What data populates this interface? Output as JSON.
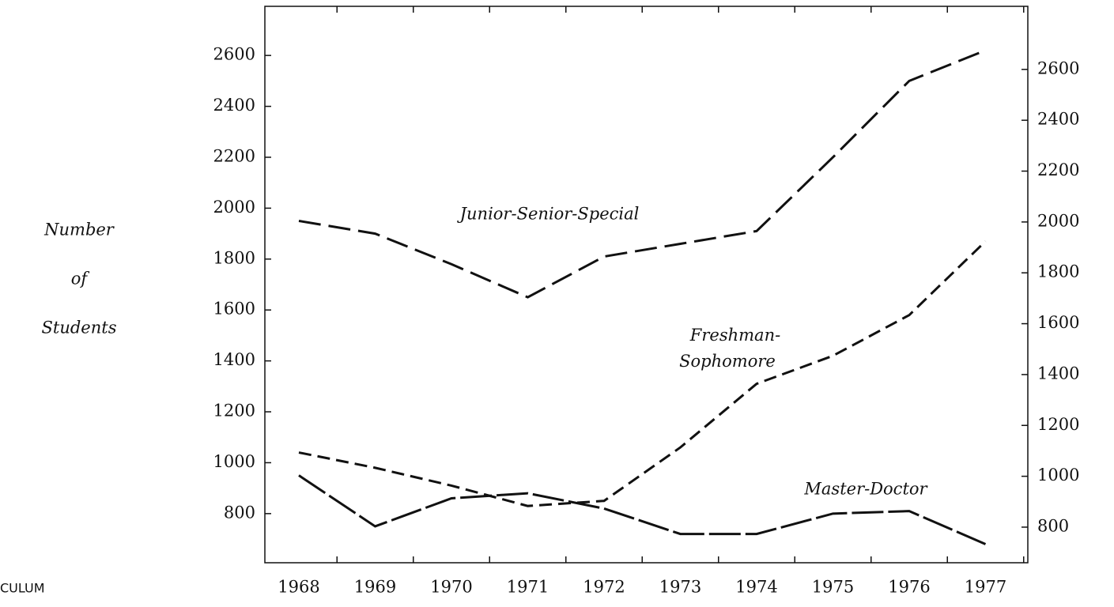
{
  "chart_data": {
    "type": "line",
    "y_label_lines": [
      "Number",
      "of",
      "Students"
    ],
    "categories": [
      "1968",
      "1969",
      "1970",
      "1971",
      "1972",
      "1973",
      "1974",
      "1975",
      "1976",
      "1977"
    ],
    "series": [
      {
        "name": "Junior-Senior-Special",
        "color": "#111111",
        "dash": "28 10",
        "values": [
          1950,
          1900,
          1780,
          1650,
          1810,
          1860,
          1910,
          2200,
          2500,
          2620
        ]
      },
      {
        "name": "Freshman-Sophomore",
        "color": "#111111",
        "dash": "16 8",
        "values": [
          1040,
          980,
          910,
          830,
          850,
          1060,
          1310,
          1420,
          1580,
          1870
        ]
      },
      {
        "name": "Master-Doctor",
        "color": "#111111",
        "dash": "40 6",
        "values": [
          950,
          750,
          860,
          880,
          820,
          720,
          720,
          800,
          810,
          680
        ]
      }
    ],
    "ylim": [
      607,
      2793
    ],
    "yticks": [
      800,
      1000,
      1200,
      1400,
      1600,
      1800,
      2000,
      2200,
      2400,
      2600
    ],
    "y2lim": [
      660,
      2848
    ],
    "y2ticks": [
      800,
      1000,
      1200,
      1400,
      1600,
      1800,
      2000,
      2200,
      2400,
      2600
    ],
    "footer_fragment": "CULUM"
  }
}
